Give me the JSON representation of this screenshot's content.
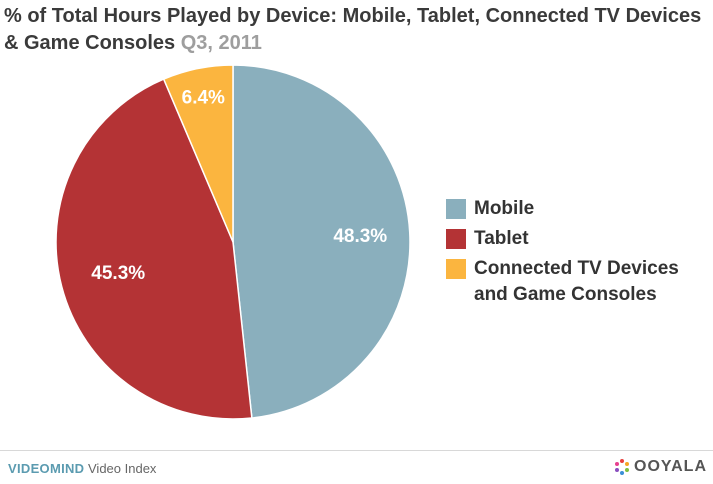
{
  "title": {
    "main": "% of Total Hours Played by Device: Mobile, Tablet, Connected TV Devices & Game Consoles",
    "period": "Q3, 2011"
  },
  "chart_data": {
    "type": "pie",
    "title": "% of Total Hours Played by Device: Mobile, Tablet, Connected TV Devices & Game Consoles Q3, 2011",
    "slices": [
      {
        "label": "Mobile",
        "value": 48.3,
        "display": "48.3%",
        "color": "#8aafbd"
      },
      {
        "label": "Tablet",
        "value": 45.3,
        "display": "45.3%",
        "color": "#b43335"
      },
      {
        "label": "Connected TV Devices and Game Consoles",
        "value": 6.4,
        "display": "6.4%",
        "color": "#fbb53f"
      }
    ],
    "legend_position": "right",
    "label_color": "#ffffff"
  },
  "legend": [
    {
      "label": "Mobile",
      "color": "#8aafbd"
    },
    {
      "label": "Tablet",
      "color": "#b43335"
    },
    {
      "label": "Connected TV Devices and Game Consoles",
      "color": "#fbb53f"
    }
  ],
  "footer": {
    "brand": "VIDEOMIND",
    "product": "Video Index",
    "logo": "OOYALA",
    "logo_icon": "ooyala-dots-icon"
  }
}
